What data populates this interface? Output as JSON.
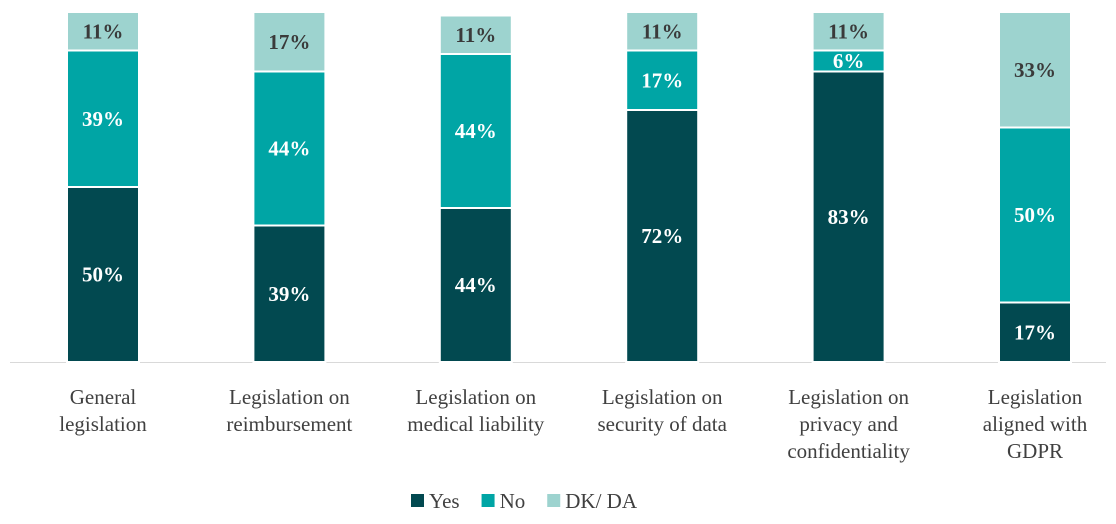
{
  "chart_data": {
    "type": "bar",
    "stacked": true,
    "percent": true,
    "categories": [
      [
        "General",
        "legislation"
      ],
      [
        "Legislation on",
        "reimbursement"
      ],
      [
        "Legislation on",
        "medical liability"
      ],
      [
        "Legislation on",
        "security of data"
      ],
      [
        "Legislation on",
        "privacy and",
        "confidentiality"
      ],
      [
        "Legislation",
        "aligned with",
        "GDPR"
      ]
    ],
    "series": [
      {
        "name": "Yes",
        "color": "#024950",
        "label_color": "#ffffff",
        "values": [
          50,
          39,
          44,
          72,
          83,
          17
        ]
      },
      {
        "name": "No",
        "color": "#00a5a5",
        "label_color": "#ffffff",
        "values": [
          39,
          44,
          44,
          17,
          6,
          50
        ]
      },
      {
        "name": "DK/ DA",
        "color": "#9dd3cf",
        "label_color": "#3a3a3a",
        "values": [
          11,
          17,
          11,
          11,
          11,
          33
        ]
      }
    ],
    "value_suffix": "%",
    "ylim": [
      0,
      100
    ],
    "grid": false,
    "legend": "bottom"
  }
}
